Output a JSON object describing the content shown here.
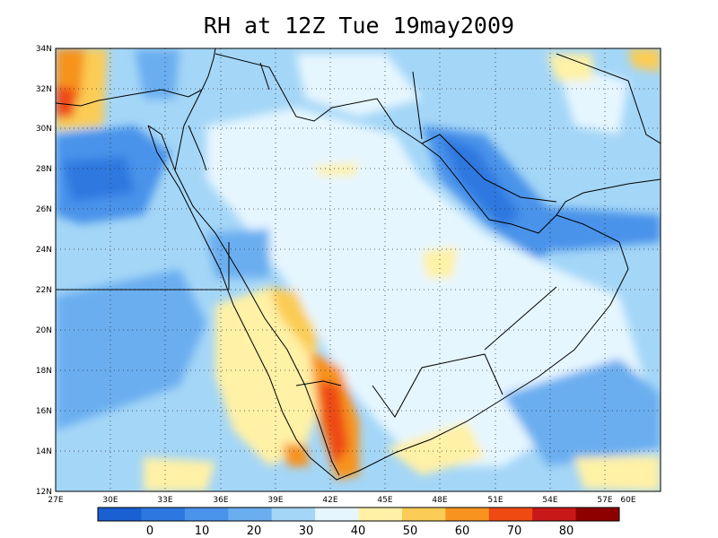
{
  "title": "RH at 12Z Tue 19may2009",
  "lat_labels": [
    "12N",
    "14N",
    "16N",
    "18N",
    "20N",
    "22N",
    "24N",
    "26N",
    "28N",
    "30N",
    "32N",
    "34N"
  ],
  "lon_labels": [
    "27E",
    "30E",
    "33E",
    "36E",
    "39E",
    "42E",
    "45E",
    "48E",
    "51E",
    "54E",
    "57E",
    "60E"
  ],
  "colorbar": {
    "labels": [
      "0",
      "10",
      "20",
      "30",
      "40",
      "50",
      "60",
      "70",
      "80"
    ],
    "colors": [
      "#1a60d2",
      "#2d78e0",
      "#4a93ea",
      "#6aaef0",
      "#a4d6f7",
      "#e6f6ff",
      "#fff1a6",
      "#fbcc55",
      "#f7931e",
      "#ee4a12",
      "#c81818",
      "#8e0000"
    ]
  },
  "map": {
    "background_level": "#a4d6f7",
    "lon_range": [
      27,
      60
    ],
    "lat_range": [
      12,
      34
    ]
  }
}
